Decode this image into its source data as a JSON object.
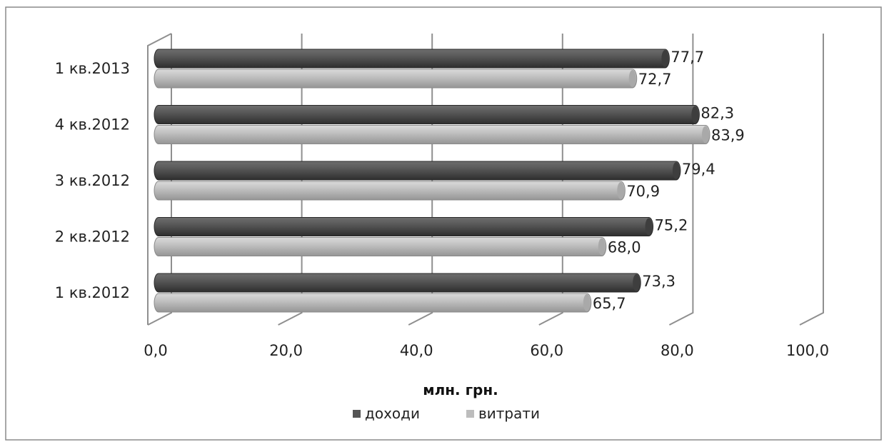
{
  "chart_data": {
    "type": "bar",
    "orientation": "horizontal",
    "categories": [
      "1 кв.2012",
      "2 кв.2012",
      "3 кв.2012",
      "4 кв.2012",
      "1 кв.2013"
    ],
    "series": [
      {
        "name": "доходи",
        "values": [
          73.3,
          75.2,
          79.4,
          82.3,
          77.7
        ],
        "labels": [
          "73,3",
          "75,2",
          "79,4",
          "82,3",
          "77,7"
        ],
        "color": "#555555"
      },
      {
        "name": "витрати",
        "values": [
          65.7,
          68.0,
          70.9,
          83.9,
          72.7
        ],
        "labels": [
          "65,7",
          "68,0",
          "70,9",
          "83,9",
          "72,7"
        ],
        "color": "#bdbdbd"
      }
    ],
    "xlabel": "млн. грн.",
    "ylabel": "",
    "xlim": [
      0,
      100
    ],
    "xticks": [
      "0,0",
      "20,0",
      "40,0",
      "60,0",
      "80,0",
      "100,0"
    ],
    "grid": "vertical",
    "legend": "bottom",
    "style": "3d-cylinder"
  }
}
